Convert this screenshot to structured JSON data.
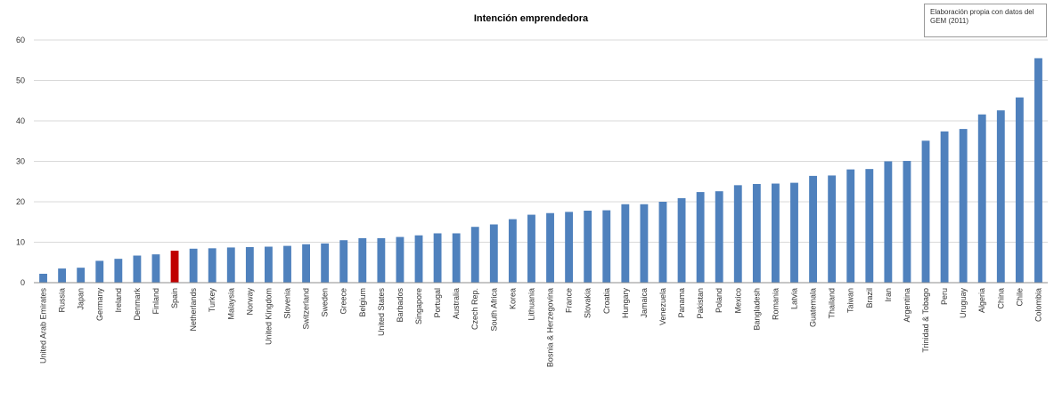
{
  "chart_data": {
    "type": "bar",
    "title": "Intención emprendedora",
    "xlabel": "",
    "ylabel": "",
    "ylim": [
      0,
      60
    ],
    "yticks": [
      0,
      10,
      20,
      30,
      40,
      50,
      60
    ],
    "grid": true,
    "colors": {
      "default": "#4f81bd",
      "highlight": "#c00000"
    },
    "highlight_category": "Spain",
    "categories": [
      "United Arab Emirates",
      "Russia",
      "Japan",
      "Germany",
      "Ireland",
      "Denmark",
      "Finland",
      "Spain",
      "Netherlands",
      "Turkey",
      "Malaysia",
      "Norway",
      "United Kingdom",
      "Slovenia",
      "Switzerland",
      "Sweden",
      "Greece",
      "Belgium",
      "United States",
      "Barbados",
      "Singapore",
      "Portugal",
      "Australia",
      "Czech Rep.",
      "South Africa",
      "Korea",
      "Lithuania",
      "Bosnia & Herzegovina",
      "France",
      "Slovakia",
      "Croatia",
      "Hungary",
      "Jamaica",
      "Venezuela",
      "Panama",
      "Pakistan",
      "Poland",
      "Mexico",
      "Bangladesh",
      "Romania",
      "Latvia",
      "Guatemala",
      "Thailand",
      "Taiwan",
      "Brazil",
      "Iran",
      "Argentina",
      "Trinidad & Tobago",
      "Peru",
      "Uruguay",
      "Algeria",
      "China",
      "Chile",
      "Colombia"
    ],
    "values": [
      2.2,
      3.5,
      3.7,
      5.4,
      5.9,
      6.7,
      7.0,
      7.9,
      8.4,
      8.5,
      8.7,
      8.8,
      8.9,
      9.1,
      9.5,
      9.7,
      10.5,
      11.0,
      11.0,
      11.3,
      11.7,
      12.2,
      12.2,
      13.8,
      14.4,
      15.7,
      16.8,
      17.2,
      17.5,
      17.8,
      17.9,
      19.4,
      19.4,
      20.0,
      20.9,
      22.4,
      22.6,
      24.1,
      24.4,
      24.5,
      24.7,
      26.4,
      26.5,
      28.0,
      28.1,
      30.0,
      30.1,
      35.1,
      37.4,
      38.0,
      41.6,
      42.6,
      45.8,
      55.5
    ],
    "annotation": "Elaboración propia con datos del GEM (2011)"
  }
}
